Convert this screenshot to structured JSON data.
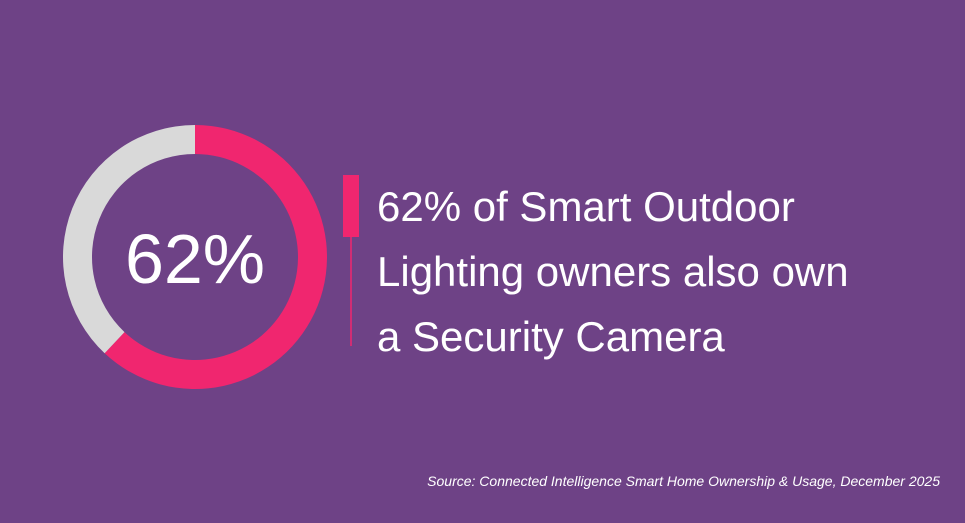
{
  "chart_data": {
    "type": "donut",
    "values": [
      62,
      38
    ],
    "colors": [
      "#f0266f",
      "#d9d9d9"
    ],
    "center_label": "62%",
    "headline": [
      "62% of Smart Outdoor",
      "Lighting owners also own",
      "a Security Camera"
    ],
    "source": "Source: Connected Intelligence Smart Home Ownership & Usage, December 2025"
  }
}
